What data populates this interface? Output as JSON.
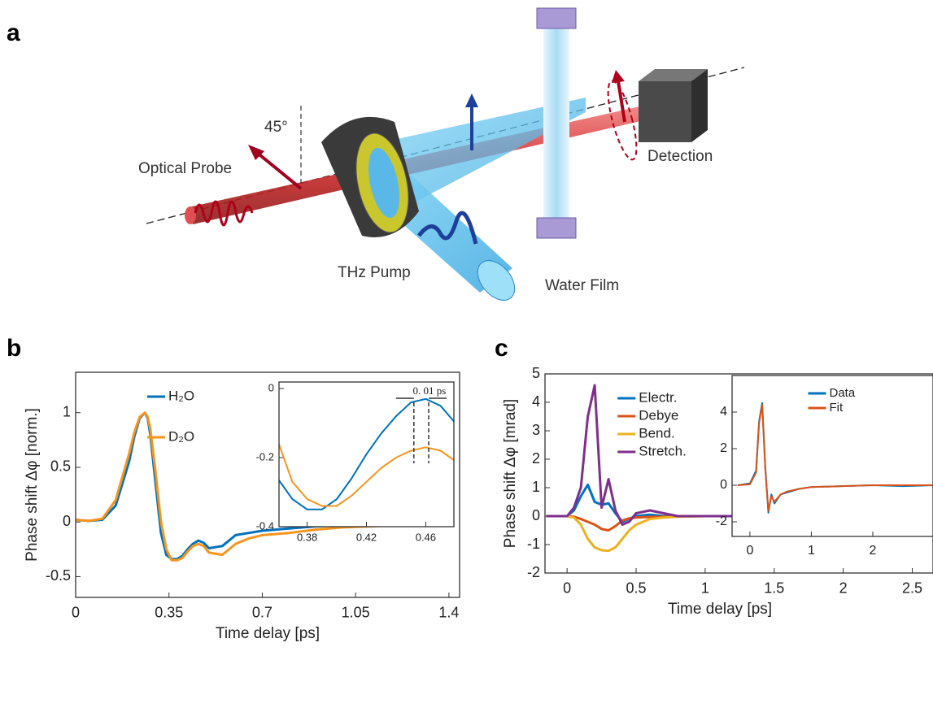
{
  "panel_labels": [
    "a",
    "b",
    "c"
  ],
  "diagram": {
    "angle": "45°",
    "probe": "Optical Probe",
    "pump": "THz Pump",
    "film": "Water Film",
    "detector": "Detection"
  },
  "chart_data": [
    {
      "type": "line",
      "xlabel": "Time delay [ps]",
      "ylabel": "Phase shift Δφ [norm.]",
      "x": [
        0,
        0.05,
        0.1,
        0.15,
        0.2,
        0.22,
        0.24,
        0.26,
        0.27,
        0.28,
        0.3,
        0.32,
        0.34,
        0.36,
        0.38,
        0.4,
        0.42,
        0.44,
        0.46,
        0.48,
        0.5,
        0.55,
        0.6,
        0.65,
        0.7,
        0.8,
        0.9,
        1.0,
        1.1,
        1.2,
        1.3,
        1.4
      ],
      "series": [
        {
          "name": "H₂O",
          "color": "#0072bd",
          "values": [
            0.02,
            0.01,
            0.02,
            0.15,
            0.55,
            0.78,
            0.95,
            1.0,
            0.95,
            0.8,
            0.35,
            -0.1,
            -0.3,
            -0.34,
            -0.34,
            -0.31,
            -0.25,
            -0.2,
            -0.17,
            -0.19,
            -0.24,
            -0.22,
            -0.12,
            -0.1,
            -0.08,
            -0.06,
            -0.04,
            -0.03,
            -0.02,
            -0.01,
            0.0,
            0.01
          ]
        },
        {
          "name": "D₂O",
          "color": "#f7941d",
          "values": [
            0.02,
            0.01,
            0.03,
            0.2,
            0.62,
            0.82,
            0.96,
            1.0,
            0.96,
            0.85,
            0.45,
            0.0,
            -0.25,
            -0.35,
            -0.35,
            -0.33,
            -0.27,
            -0.22,
            -0.2,
            -0.22,
            -0.28,
            -0.3,
            -0.2,
            -0.15,
            -0.12,
            -0.1,
            -0.07,
            -0.05,
            -0.04,
            -0.03,
            -0.02,
            -0.01
          ]
        }
      ],
      "xlim": [
        0,
        1.44
      ],
      "ylim": [
        -0.69,
        1.37
      ],
      "xticks": [
        0,
        0.35,
        0.7,
        1.05,
        1.4
      ],
      "yticks": [
        -0.5,
        0,
        0.5,
        1
      ],
      "legend": "upper left"
    },
    {
      "type": "line",
      "x": [
        0.36,
        0.37,
        0.38,
        0.39,
        0.4,
        0.41,
        0.42,
        0.43,
        0.44,
        0.45,
        0.46,
        0.47,
        0.48
      ],
      "series": [
        {
          "name": "H₂O",
          "color": "#0072bd",
          "values": [
            -0.26,
            -0.32,
            -0.35,
            -0.35,
            -0.32,
            -0.26,
            -0.19,
            -0.13,
            -0.08,
            -0.04,
            -0.03,
            -0.05,
            -0.1
          ]
        },
        {
          "name": "D₂O",
          "color": "#f7941d",
          "values": [
            -0.15,
            -0.27,
            -0.32,
            -0.34,
            -0.34,
            -0.31,
            -0.27,
            -0.23,
            -0.2,
            -0.18,
            -0.17,
            -0.18,
            -0.21
          ]
        }
      ],
      "xlim": [
        0.361,
        0.479
      ],
      "ylim": [
        -0.4,
        0.019
      ],
      "xticks": [
        0.38,
        0.42,
        0.46
      ],
      "yticks": [
        -0.4,
        -0.2,
        0
      ],
      "annotation": "0. 01 ps",
      "vlines": [
        0.452,
        0.462
      ]
    },
    {
      "type": "line",
      "xlabel": "Time delay [ps]",
      "ylabel": "Phase shift Δφ [mrad]",
      "x": [
        -0.15,
        0,
        0.05,
        0.1,
        0.15,
        0.2,
        0.25,
        0.3,
        0.35,
        0.4,
        0.45,
        0.5,
        0.6,
        0.7,
        0.8,
        1,
        1.5,
        2,
        2.65
      ],
      "series": [
        {
          "name": "Electr.",
          "color": "#0072bd",
          "values": [
            0,
            0,
            0.2,
            0.7,
            1.1,
            0.5,
            0.4,
            0.45,
            0.1,
            -0.2,
            -0.1,
            0,
            0.05,
            0,
            0,
            0,
            0,
            0,
            0
          ]
        },
        {
          "name": "Debye",
          "color": "#d95319",
          "values": [
            0,
            0,
            -0.02,
            -0.1,
            -0.2,
            -0.3,
            -0.45,
            -0.5,
            -0.35,
            -0.15,
            -0.08,
            -0.05,
            -0.03,
            -0.02,
            -0.01,
            0,
            0,
            0,
            0
          ]
        },
        {
          "name": "Bend.",
          "color": "#edb120",
          "values": [
            0,
            0,
            -0.05,
            -0.3,
            -0.8,
            -1.1,
            -1.2,
            -1.22,
            -1.1,
            -0.8,
            -0.5,
            -0.3,
            -0.1,
            -0.05,
            -0.02,
            0,
            0,
            0,
            0
          ]
        },
        {
          "name": "Stretch.",
          "color": "#7e2f8e",
          "values": [
            0,
            0,
            0.3,
            1.0,
            3.5,
            4.6,
            0.3,
            1.3,
            0.2,
            -0.3,
            -0.2,
            0.1,
            0.2,
            0.1,
            0,
            0,
            0,
            0,
            0
          ]
        }
      ],
      "xlim": [
        -0.16,
        2.65
      ],
      "ylim": [
        -2,
        5
      ],
      "xticks": [
        0,
        0.5,
        1,
        1.5,
        2,
        2.5
      ],
      "yticks": [
        -2,
        -1,
        0,
        1,
        2,
        3,
        4,
        5
      ],
      "legend": "upper left"
    },
    {
      "type": "line",
      "x": [
        -0.2,
        0,
        0.1,
        0.15,
        0.2,
        0.25,
        0.3,
        0.35,
        0.4,
        0.5,
        0.6,
        0.8,
        1,
        1.5,
        2,
        2.5,
        3
      ],
      "series": [
        {
          "name": "Data",
          "color": "#0072bd",
          "values": [
            0,
            0.1,
            0.8,
            3.5,
            4.5,
            1,
            -1.5,
            -0.5,
            -1,
            -0.5,
            -0.4,
            -0.2,
            -0.1,
            -0.05,
            0,
            -0.05,
            0
          ]
        },
        {
          "name": "Fit",
          "color": "#d95319",
          "values": [
            0,
            0.05,
            0.7,
            3.4,
            4.4,
            0.9,
            -1.4,
            -0.6,
            -0.9,
            -0.5,
            -0.35,
            -0.2,
            -0.1,
            -0.05,
            0,
            0,
            0
          ]
        }
      ],
      "xlim": [
        -0.29,
        2.98
      ],
      "ylim": [
        -2.8,
        6
      ],
      "xticks": [
        0,
        1,
        2
      ],
      "yticks": [
        -2,
        0,
        2,
        4
      ],
      "legend": "upper center"
    }
  ]
}
